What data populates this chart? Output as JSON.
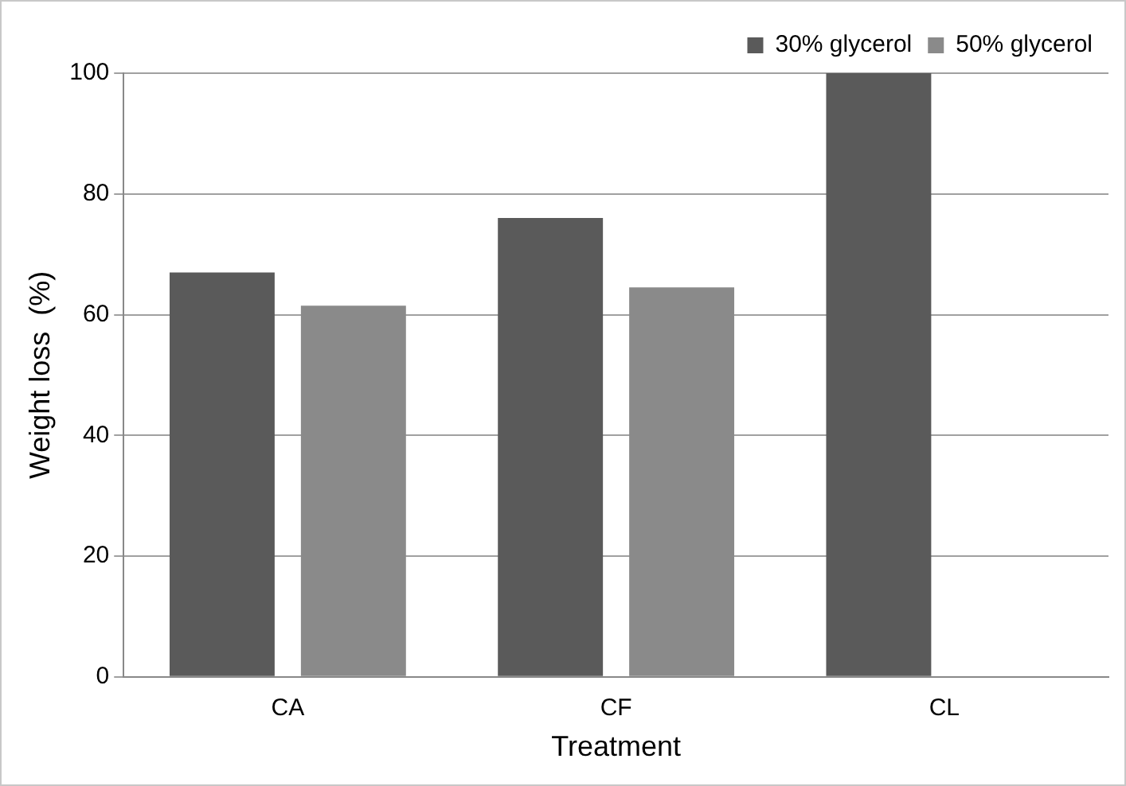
{
  "chart_data": {
    "type": "bar",
    "xlabel": "Treatment",
    "ylabel": "Weight loss  (%)",
    "categories": [
      "CA",
      "CF",
      "CL"
    ],
    "series": [
      {
        "name": "30% glycerol",
        "color": "#5a5a5a",
        "values": [
          67,
          76,
          100
        ]
      },
      {
        "name": "50% glycerol",
        "color": "#8a8a8a",
        "values": [
          61.5,
          64.5,
          null
        ]
      }
    ],
    "ylim": [
      0,
      100
    ],
    "yticks": [
      0,
      20,
      40,
      60,
      80,
      100
    ],
    "grid": "y",
    "legend": "top right"
  }
}
